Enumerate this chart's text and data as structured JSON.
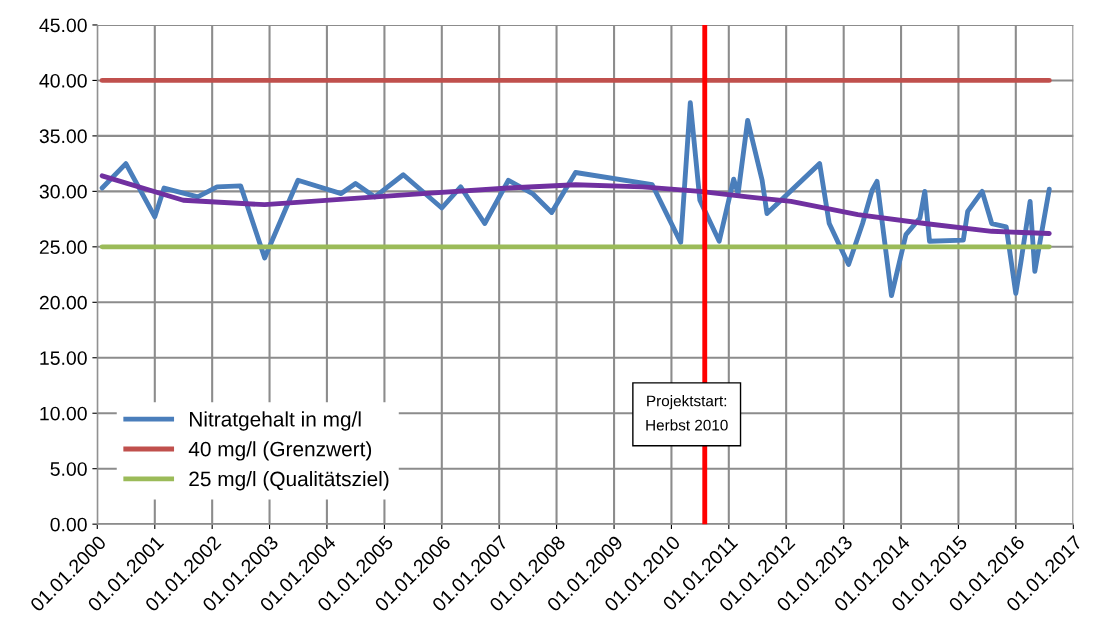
{
  "chart_data": {
    "type": "line",
    "xlim": [
      "2000-01-01",
      "2017-01-01"
    ],
    "xticks": [
      {
        "value": "2000-01-01",
        "label": "01.01.2000"
      },
      {
        "value": "2001-01-01",
        "label": "01.01.2001"
      },
      {
        "value": "2002-01-01",
        "label": "01.01.2002"
      },
      {
        "value": "2003-01-01",
        "label": "01.01.2003"
      },
      {
        "value": "2004-01-01",
        "label": "01.01.2004"
      },
      {
        "value": "2005-01-01",
        "label": "01.01.2005"
      },
      {
        "value": "2006-01-01",
        "label": "01.01.2006"
      },
      {
        "value": "2007-01-01",
        "label": "01.01.2007"
      },
      {
        "value": "2008-01-01",
        "label": "01.01.2008"
      },
      {
        "value": "2009-01-01",
        "label": "01.01.2009"
      },
      {
        "value": "2010-01-01",
        "label": "01.01.2010"
      },
      {
        "value": "2011-01-01",
        "label": "01.01.2011"
      },
      {
        "value": "2012-01-01",
        "label": "01.01.2012"
      },
      {
        "value": "2013-01-01",
        "label": "01.01.2013"
      },
      {
        "value": "2014-01-01",
        "label": "01.01.2014"
      },
      {
        "value": "2015-01-01",
        "label": "01.01.2015"
      },
      {
        "value": "2016-01-01",
        "label": "01.01.2016"
      },
      {
        "value": "2017-01-01",
        "label": "01.01.2017"
      }
    ],
    "ylim": [
      0,
      45
    ],
    "yticks": [
      {
        "value": 0,
        "label": "0.00"
      },
      {
        "value": 5,
        "label": "5.00"
      },
      {
        "value": 10,
        "label": "10.00"
      },
      {
        "value": 15,
        "label": "15.00"
      },
      {
        "value": 20,
        "label": "20.00"
      },
      {
        "value": 25,
        "label": "25.00"
      },
      {
        "value": 30,
        "label": "30.00"
      },
      {
        "value": 35,
        "label": "35.00"
      },
      {
        "value": 40,
        "label": "40.00"
      },
      {
        "value": 45,
        "label": "45.00"
      }
    ],
    "grid": true,
    "legend": "bottom left",
    "series": [
      {
        "name": "Nitratgehalt in mg/l",
        "color": "#4a7ebb",
        "x": [
          "2000-02",
          "2000-07",
          "2001-01",
          "2001-03",
          "2001-10",
          "2002-02",
          "2002-07",
          "2002-12",
          "2003-07",
          "2004-04",
          "2004-07",
          "2004-11",
          "2005-05",
          "2006-01",
          "2006-05",
          "2006-10",
          "2007-03",
          "2007-08",
          "2007-12",
          "2008-05",
          "2009-09",
          "2010-03",
          "2010-05",
          "2010-07",
          "2010-11",
          "2011-02",
          "2011-03",
          "2011-05",
          "2011-08",
          "2011-09",
          "2012-08",
          "2012-10",
          "2013-02",
          "2013-05",
          "2013-07",
          "2013-08",
          "2013-11",
          "2014-02",
          "2014-05",
          "2014-06",
          "2014-07",
          "2015-02",
          "2015-03",
          "2015-06",
          "2015-08",
          "2015-11",
          "2016-01",
          "2016-02",
          "2016-04",
          "2016-05",
          "2016-08"
        ],
        "values": [
          30.3,
          32.5,
          27.7,
          30.3,
          29.5,
          30.4,
          30.5,
          24.0,
          31.0,
          29.8,
          30.7,
          29.5,
          31.5,
          28.5,
          30.4,
          27.1,
          31.0,
          29.8,
          28.1,
          31.7,
          30.6,
          25.4,
          38.0,
          29.2,
          25.5,
          31.1,
          29.8,
          36.4,
          31.0,
          28.0,
          32.5,
          27.1,
          23.4,
          27.1,
          30.1,
          30.9,
          20.6,
          26.1,
          27.6,
          30.0,
          25.5,
          25.6,
          28.2,
          30.0,
          27.1,
          26.8,
          20.8,
          23.5,
          29.1,
          22.8,
          30.2
        ]
      },
      {
        "name": "40 mg/l (Grenzwert)",
        "color": "#c0504d",
        "x": [
          "2000-02",
          "2016-08"
        ],
        "values": [
          40,
          40
        ]
      },
      {
        "name": "25 mg/l (Qualitätsziel)",
        "color": "#9bbb59",
        "x": [
          "2000-02",
          "2016-08"
        ],
        "values": [
          25,
          25
        ]
      },
      {
        "color": "#7030a0",
        "x": [
          "2000-02",
          "2001-07",
          "2002-12",
          "2005-09",
          "2007-03",
          "2008-05",
          "2009-07",
          "2010-07",
          "2011-05",
          "2012-02",
          "2013-04",
          "2014-06",
          "2015-08",
          "2016-08"
        ],
        "values": [
          31.4,
          29.2,
          28.8,
          29.8,
          30.3,
          30.6,
          30.4,
          30.0,
          29.5,
          29.1,
          27.9,
          27.1,
          26.4,
          26.2
        ]
      }
    ],
    "ref_lines": [
      {
        "axis": "x",
        "value": "2010-08",
        "label": "Projektstart:\nHerbst 2010",
        "color": "#ff0000"
      }
    ]
  }
}
